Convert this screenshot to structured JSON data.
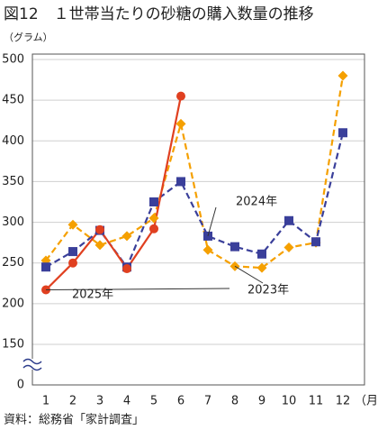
{
  "chart_data": {
    "type": "line",
    "title": "図12　１世帯当たりの砂糖の購入数量の推移",
    "y_label": "（グラム）",
    "x_label": "（月）",
    "source": "資料：総務省「家計調査」",
    "categories": [
      "1",
      "2",
      "3",
      "4",
      "5",
      "6",
      "7",
      "8",
      "9",
      "10",
      "11",
      "12"
    ],
    "series": [
      {
        "name": "2023年",
        "color": "#f5a000",
        "marker": "diamond",
        "dashed": true,
        "values": [
          253,
          297,
          272,
          283,
          305,
          421,
          266,
          246,
          244,
          269,
          275,
          480
        ]
      },
      {
        "name": "2024年",
        "color": "#3a3f9a",
        "marker": "square",
        "dashed": true,
        "values": [
          245,
          264,
          290,
          245,
          325,
          350,
          283,
          270,
          261,
          302,
          276,
          410
        ]
      },
      {
        "name": "2025年",
        "color": "#e04020",
        "marker": "circle",
        "dashed": false,
        "values": [
          217,
          250,
          291,
          243,
          292,
          455,
          null,
          null,
          null,
          null,
          null,
          null
        ]
      }
    ],
    "ylim": [
      0,
      500
    ],
    "axis_break": [
      0,
      150
    ],
    "yticks": [
      0,
      150,
      200,
      250,
      300,
      350,
      400,
      450,
      500
    ],
    "grid": true
  }
}
